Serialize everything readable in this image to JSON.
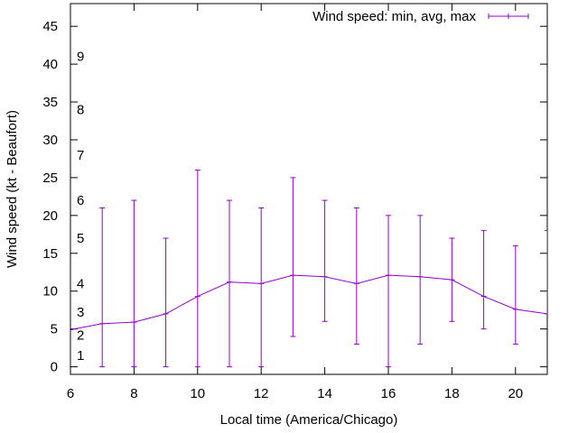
{
  "chart_data": {
    "type": "line",
    "title": "",
    "xlabel": "Local time (America/Chicago)",
    "ylabel": "Wind speed (kt - Beaufort)",
    "xlim": [
      6,
      21
    ],
    "ylim": [
      -1,
      48
    ],
    "x_ticks": [
      6,
      8,
      10,
      12,
      14,
      16,
      18,
      20
    ],
    "y_ticks": [
      0,
      5,
      10,
      15,
      20,
      25,
      30,
      35,
      40,
      45
    ],
    "beaufort_labels": [
      {
        "label": "1",
        "value": 1.5
      },
      {
        "label": "2",
        "value": 4.2
      },
      {
        "label": "3",
        "value": 7.2
      },
      {
        "label": "4",
        "value": 11.0
      },
      {
        "label": "5",
        "value": 17.0
      },
      {
        "label": "6",
        "value": 22.0
      },
      {
        "label": "7",
        "value": 28.0
      },
      {
        "label": "8",
        "value": 34.0
      },
      {
        "label": "9",
        "value": 41.0
      }
    ],
    "series": [
      {
        "name": "Wind speed: min, avg, max",
        "color": "#9400d3",
        "points": [
          {
            "x": 6,
            "avg": 4.9,
            "min": null,
            "max": null
          },
          {
            "x": 7,
            "avg": 5.7,
            "min": 0,
            "max": 21
          },
          {
            "x": 8,
            "avg": 5.9,
            "min": 0,
            "max": 22
          },
          {
            "x": 9,
            "avg": 7.0,
            "min": 0,
            "max": 17
          },
          {
            "x": 10,
            "avg": 9.3,
            "min": 0,
            "max": 26
          },
          {
            "x": 11,
            "avg": 11.2,
            "min": 0,
            "max": 22
          },
          {
            "x": 12,
            "avg": 11.0,
            "min": 0,
            "max": 21
          },
          {
            "x": 13,
            "avg": 12.1,
            "min": 4,
            "max": 25
          },
          {
            "x": 14,
            "avg": 11.9,
            "min": 6,
            "max": 22
          },
          {
            "x": 15,
            "avg": 11.0,
            "min": 3,
            "max": 21
          },
          {
            "x": 16,
            "avg": 12.1,
            "min": 0,
            "max": 20
          },
          {
            "x": 17,
            "avg": 11.9,
            "min": 3,
            "max": 20
          },
          {
            "x": 18,
            "avg": 11.5,
            "min": 6,
            "max": 17
          },
          {
            "x": 19,
            "avg": 9.3,
            "min": 5,
            "max": 18
          },
          {
            "x": 20,
            "avg": 7.6,
            "min": 3,
            "max": 16
          },
          {
            "x": 21,
            "avg": 7.0,
            "min": null,
            "max": 18
          }
        ]
      }
    ],
    "legend_position": "top-right",
    "grid": false
  }
}
